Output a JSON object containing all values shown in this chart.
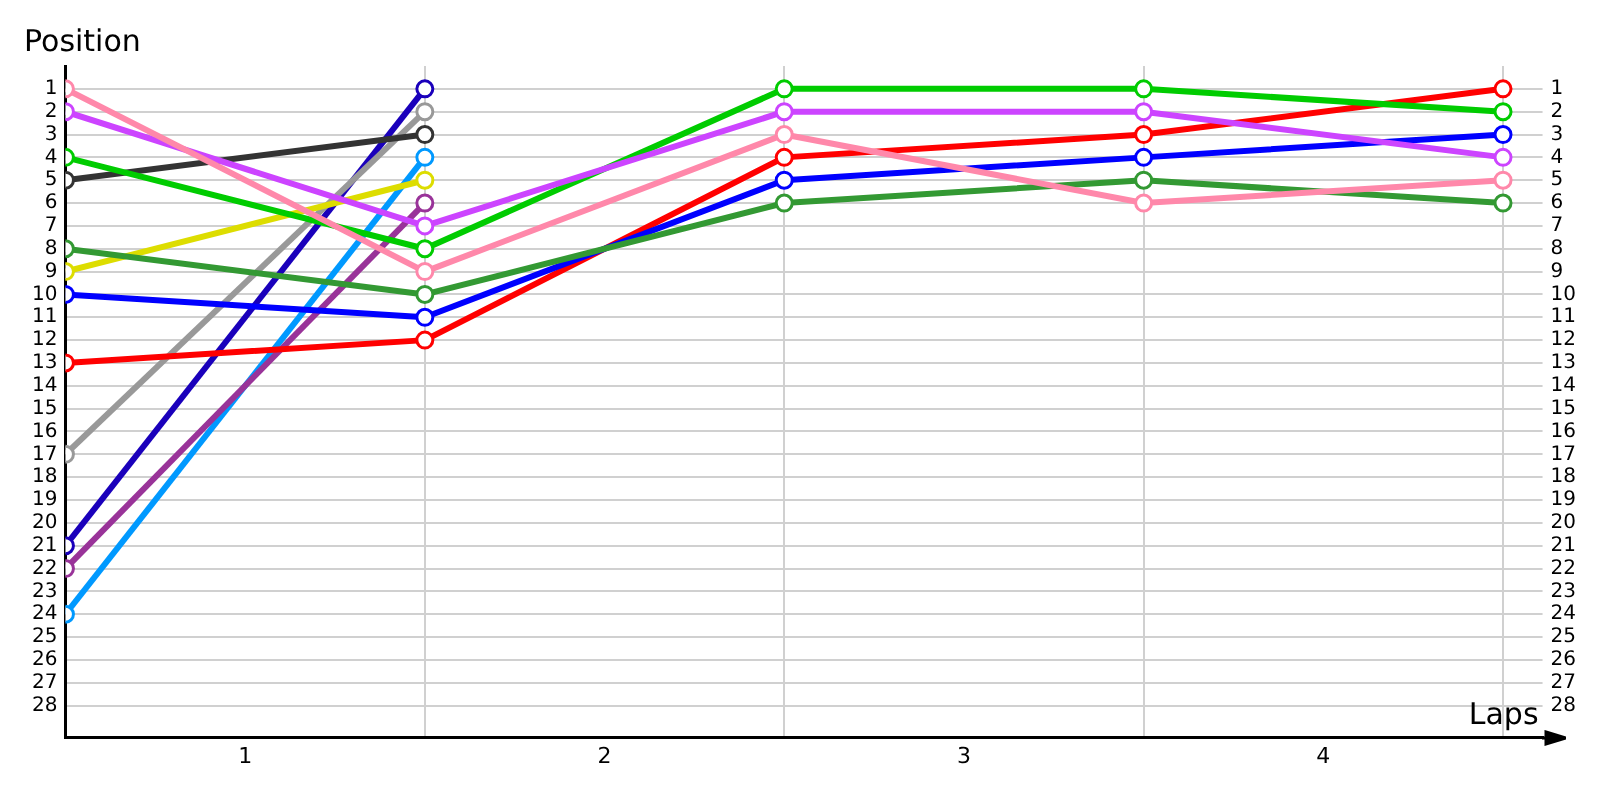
{
  "chart_data": {
    "type": "line",
    "ylabel": "Position",
    "xlabel": "Laps",
    "x": [
      0,
      1,
      2,
      3,
      4
    ],
    "xlim": [
      0,
      4.11
    ],
    "xticks": [
      {
        "value": 0,
        "label": null
      },
      {
        "value": 0.5,
        "label": "1"
      },
      {
        "value": 1,
        "label": null
      },
      {
        "value": 1.5,
        "label": "2"
      },
      {
        "value": 2,
        "label": null
      },
      {
        "value": 2.5,
        "label": "3"
      },
      {
        "value": 3,
        "label": null
      },
      {
        "value": 3.5,
        "label": "4"
      },
      {
        "value": 4,
        "label": null
      }
    ],
    "ylim": [
      29.4,
      0
    ],
    "yticks": [
      1,
      2,
      3,
      4,
      5,
      6,
      7,
      8,
      9,
      10,
      11,
      12,
      13,
      14,
      15,
      16,
      17,
      18,
      19,
      20,
      21,
      22,
      23,
      24,
      25,
      26,
      27,
      28
    ],
    "y2lim": [
      29.4,
      0
    ],
    "y2ticks": [
      1,
      2,
      3,
      4,
      5,
      6,
      7,
      8,
      9,
      10,
      11,
      12,
      13,
      14,
      15,
      16,
      17,
      18,
      19,
      20,
      21,
      22,
      23,
      24,
      25,
      26,
      27,
      28
    ],
    "grid": true,
    "legend": false,
    "marker": "circle",
    "line_style": "solid",
    "series": [
      {
        "color": "#ff88aa",
        "values": [
          1,
          9,
          3,
          6,
          5
        ]
      },
      {
        "color": "#cc44ff",
        "values": [
          2,
          7,
          2,
          2,
          4
        ]
      },
      {
        "color": "#00cc00",
        "values": [
          4,
          8,
          1,
          1,
          2
        ]
      },
      {
        "color": "#333333",
        "values": [
          5,
          3,
          null,
          null,
          null
        ]
      },
      {
        "color": "#339933",
        "values": [
          8,
          10,
          6,
          5,
          6
        ]
      },
      {
        "color": "#dddd00",
        "values": [
          9,
          5,
          null,
          null,
          null
        ]
      },
      {
        "color": "#0000ff",
        "values": [
          10,
          11,
          5,
          4,
          3
        ]
      },
      {
        "color": "#ff0000",
        "values": [
          13,
          12,
          4,
          3,
          1
        ]
      },
      {
        "color": "#999999",
        "values": [
          17,
          2,
          null,
          null,
          null
        ]
      },
      {
        "color": "#1a00bb",
        "values": [
          21,
          1,
          null,
          null,
          null
        ]
      },
      {
        "color": "#993399",
        "values": [
          22,
          6,
          null,
          null,
          null
        ]
      },
      {
        "color": "#0099ff",
        "values": [
          24,
          4,
          null,
          null,
          null
        ]
      }
    ]
  }
}
